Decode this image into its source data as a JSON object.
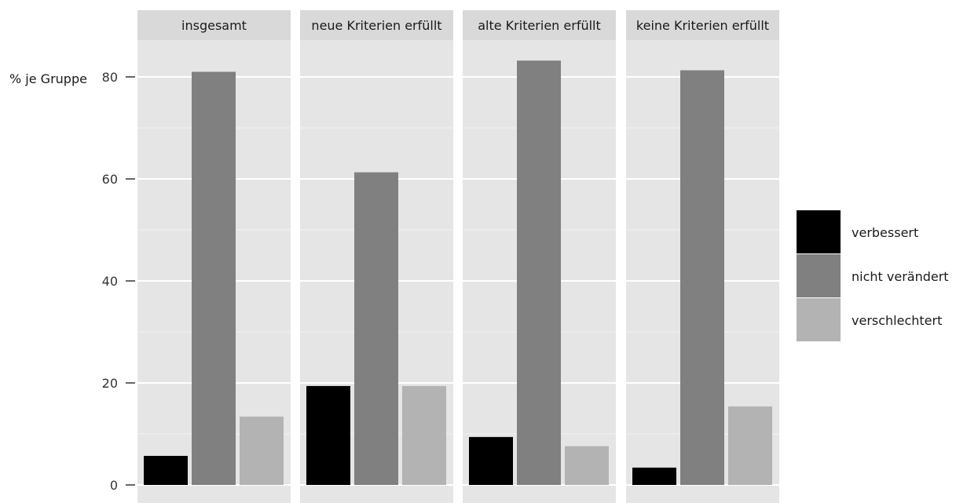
{
  "chart_data": {
    "type": "bar",
    "facet_labels": [
      "insgesamt",
      "neue Kriterien erfüllt",
      "alte Kriterien erfüllt",
      "keine Kriterien erfüllt"
    ],
    "ylabel": "% je Gruppe",
    "xlabel": "",
    "title": "",
    "ylim": [
      0,
      90
    ],
    "yticks": [
      0,
      20,
      40,
      60,
      80
    ],
    "y_tick_labels": [
      "0",
      "20",
      "40",
      "60",
      "80"
    ],
    "grid": true,
    "legend_position": "right",
    "series": [
      {
        "name": "verbessert",
        "color": "#000000",
        "values": [
          5.7,
          19.4,
          9.4,
          3.4
        ]
      },
      {
        "name": "nicht verändert",
        "color": "#808080",
        "values": [
          81.0,
          61.3,
          83.2,
          81.3
        ]
      },
      {
        "name": "verschlechtert",
        "color": "#b3b3b3",
        "values": [
          13.4,
          19.4,
          7.6,
          15.4
        ]
      }
    ],
    "colors": {
      "panel": "#e5e5e5",
      "strip": "#d9d9d9",
      "grid": "#ffffff"
    }
  }
}
